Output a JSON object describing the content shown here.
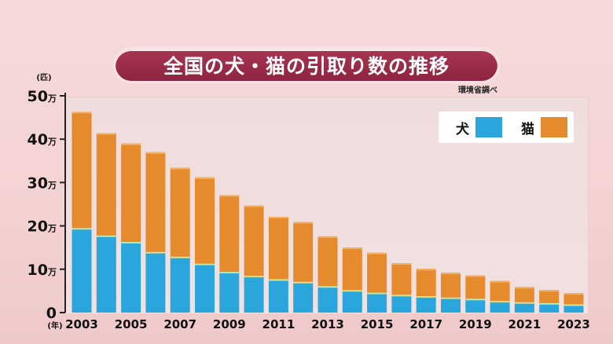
{
  "chart_data": {
    "type": "bar",
    "stacked": true,
    "title": "全国の犬・猫の引取り数の推移",
    "source": "環境省調べ",
    "y_unit": "(匹)",
    "x_unit": "(年)",
    "ylim": [
      0,
      500000
    ],
    "yticks": [
      {
        "value": 0,
        "label": "0"
      },
      {
        "value": 100000,
        "label": "10万"
      },
      {
        "value": 200000,
        "label": "20万"
      },
      {
        "value": 300000,
        "label": "30万"
      },
      {
        "value": 400000,
        "label": "40万"
      },
      {
        "value": 500000,
        "label": "50万"
      }
    ],
    "categories": [
      "2003",
      "2004",
      "2005",
      "2006",
      "2007",
      "2008",
      "2009",
      "2010",
      "2011",
      "2012",
      "2013",
      "2014",
      "2015",
      "2016",
      "2017",
      "2018",
      "2019",
      "2020",
      "2021",
      "2022",
      "2023"
    ],
    "xtick_labels": [
      "2003",
      "2005",
      "2007",
      "2009",
      "2011",
      "2013",
      "2015",
      "2017",
      "2019",
      "2021",
      "2023"
    ],
    "legend_position": "top-right",
    "series": [
      {
        "name": "犬",
        "color": "#2aa6dc",
        "values": [
          195000,
          178000,
          163000,
          140000,
          129000,
          113000,
          94000,
          85000,
          77000,
          71000,
          61000,
          52000,
          46000,
          41000,
          38000,
          35000,
          32000,
          27000,
          24000,
          22000,
          19000
        ]
      },
      {
        "name": "猫",
        "color": "#e68a2e",
        "values": [
          268000,
          236000,
          227000,
          230000,
          205000,
          199000,
          177000,
          162000,
          144000,
          138000,
          115000,
          98000,
          92000,
          73000,
          63000,
          57000,
          54000,
          46000,
          35000,
          30000,
          26000
        ]
      }
    ]
  }
}
